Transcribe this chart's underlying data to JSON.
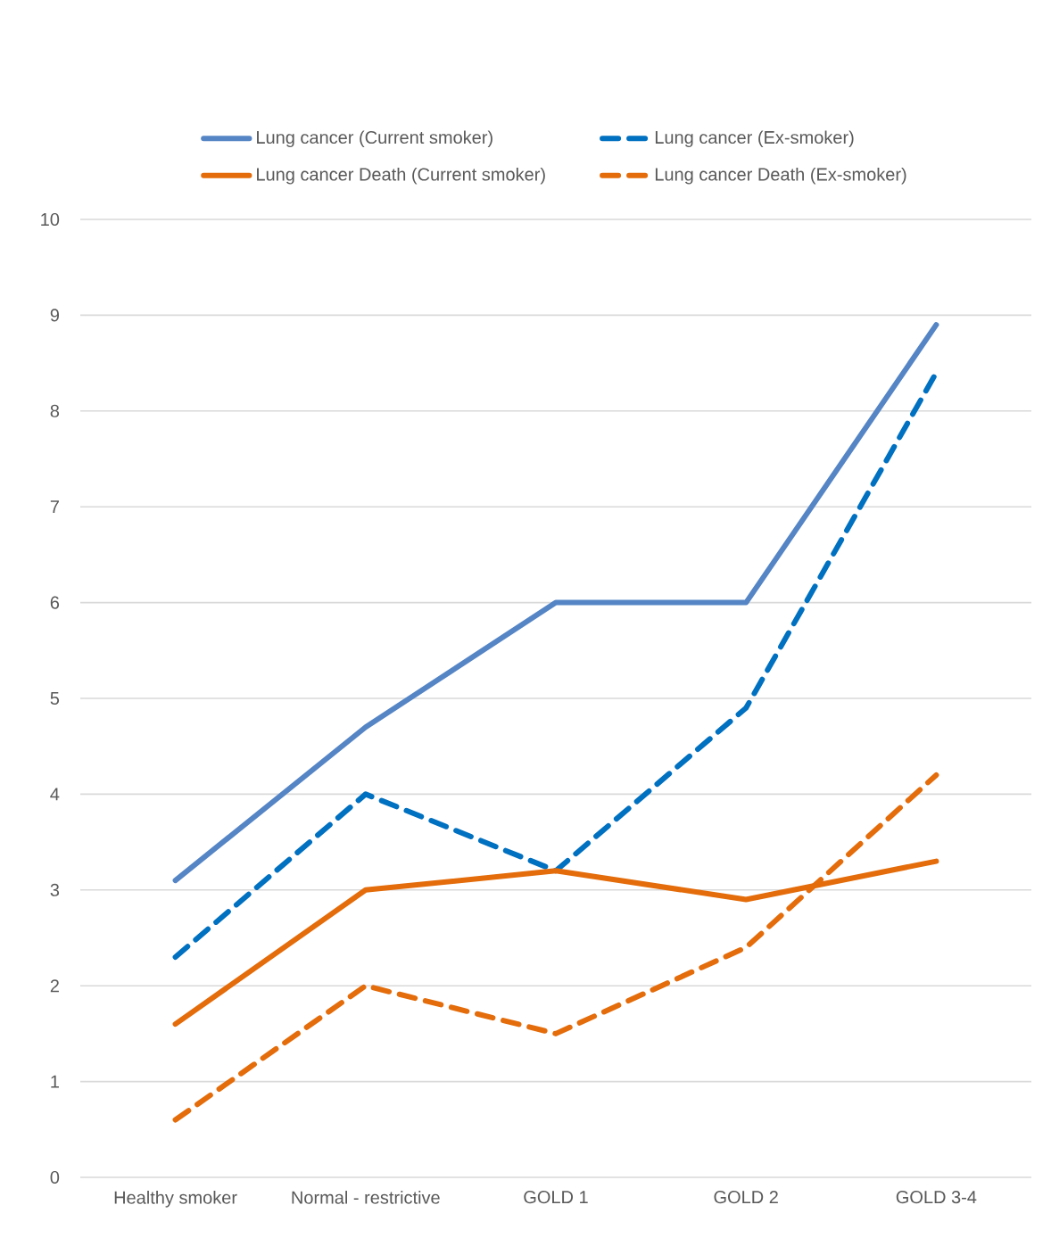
{
  "chart_data": {
    "type": "line",
    "categories": [
      "Healthy smoker",
      "Normal - restrictive",
      "GOLD 1",
      "GOLD 2",
      "GOLD 3-4"
    ],
    "series": [
      {
        "name": "Lung cancer (Current smoker)",
        "color": "#5585c5",
        "line_style": "solid",
        "values": [
          3.1,
          4.7,
          6.0,
          6.0,
          8.9
        ]
      },
      {
        "name": "Lung cancer (Ex-smoker)",
        "color": "#0070c0",
        "line_style": "dashed",
        "values": [
          2.3,
          4.0,
          3.2,
          4.9,
          8.4
        ]
      },
      {
        "name": "Lung cancer Death (Current smoker)",
        "color": "#e46c0a",
        "line_style": "solid",
        "values": [
          1.6,
          3.0,
          3.2,
          2.9,
          3.3
        ]
      },
      {
        "name": "Lung cancer Death (Ex-smoker)",
        "color": "#e46c0a",
        "line_style": "dashed",
        "values": [
          0.6,
          2.0,
          1.5,
          2.4,
          4.2
        ]
      }
    ],
    "ylim": [
      0,
      10
    ],
    "yticks": [
      0,
      1,
      2,
      3,
      4,
      5,
      6,
      7,
      8,
      9,
      10
    ],
    "grid": "y",
    "legend": "top",
    "marker": "none"
  }
}
